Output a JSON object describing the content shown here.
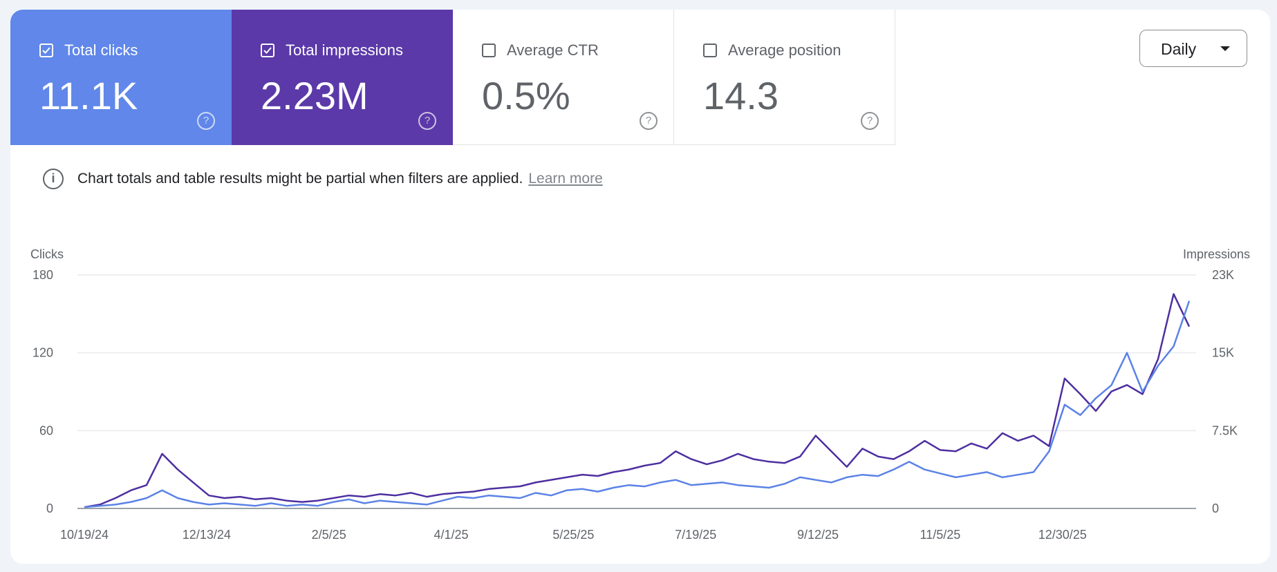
{
  "metrics": [
    {
      "label": "Total clicks",
      "value": "11.1K",
      "checked": true,
      "color": "#6087e9"
    },
    {
      "label": "Total impressions",
      "value": "2.23M",
      "checked": true,
      "color": "#5b39a8"
    },
    {
      "label": "Average CTR",
      "value": "0.5%",
      "checked": false
    },
    {
      "label": "Average position",
      "value": "14.3",
      "checked": false
    }
  ],
  "help_glyph": "?",
  "granularity": {
    "selected": "Daily"
  },
  "notice": {
    "icon": "info-icon",
    "text": "Chart totals and table results might be partial when filters are applied.",
    "link": "Learn more"
  },
  "chart_data": {
    "type": "line",
    "left_axis": {
      "label": "Clicks",
      "ticks": [
        "0",
        "60",
        "120",
        "180"
      ],
      "range": [
        0,
        180
      ]
    },
    "right_axis": {
      "label": "Impressions",
      "ticks": [
        "0",
        "7.5K",
        "15K",
        "23K"
      ],
      "range": [
        0,
        23000
      ]
    },
    "x_ticks": [
      "10/19/24",
      "12/13/24",
      "2/5/25",
      "4/1/25",
      "5/25/25",
      "7/19/25",
      "9/12/25",
      "11/5/25",
      "12/30/25"
    ],
    "grid": true,
    "series": [
      {
        "name": "Total clicks",
        "axis": "left",
        "color": "#5b82e6",
        "values": [
          1,
          2,
          3,
          5,
          8,
          14,
          8,
          5,
          3,
          4,
          3,
          2,
          4,
          2,
          3,
          2,
          5,
          7,
          4,
          6,
          5,
          4,
          3,
          6,
          9,
          8,
          10,
          9,
          8,
          12,
          10,
          14,
          15,
          13,
          16,
          18,
          17,
          20,
          22,
          18,
          19,
          20,
          18,
          17,
          16,
          19,
          24,
          22,
          20,
          24,
          26,
          25,
          30,
          36,
          30,
          27,
          24,
          26,
          28,
          24,
          26,
          28,
          44,
          80,
          72,
          85,
          95,
          120,
          90,
          110,
          125,
          160
        ]
      },
      {
        "name": "Total impressions",
        "axis": "right",
        "color": "#4d2fa0",
        "values": [
          130,
          380,
          1020,
          1790,
          2300,
          5380,
          3840,
          2560,
          1280,
          1020,
          1150,
          900,
          1020,
          770,
          640,
          770,
          1020,
          1280,
          1150,
          1410,
          1280,
          1540,
          1150,
          1410,
          1540,
          1660,
          1920,
          2050,
          2180,
          2560,
          2820,
          3070,
          3330,
          3200,
          3580,
          3840,
          4220,
          4480,
          5630,
          4860,
          4350,
          4740,
          5380,
          4860,
          4610,
          4480,
          5120,
          7170,
          5630,
          4100,
          5890,
          5120,
          4860,
          5630,
          6660,
          5760,
          5630,
          6400,
          5890,
          7420,
          6660,
          7170,
          6140,
          12800,
          11260,
          9600,
          11520,
          12160,
          11260,
          14720,
          21120,
          17920
        ]
      }
    ]
  }
}
